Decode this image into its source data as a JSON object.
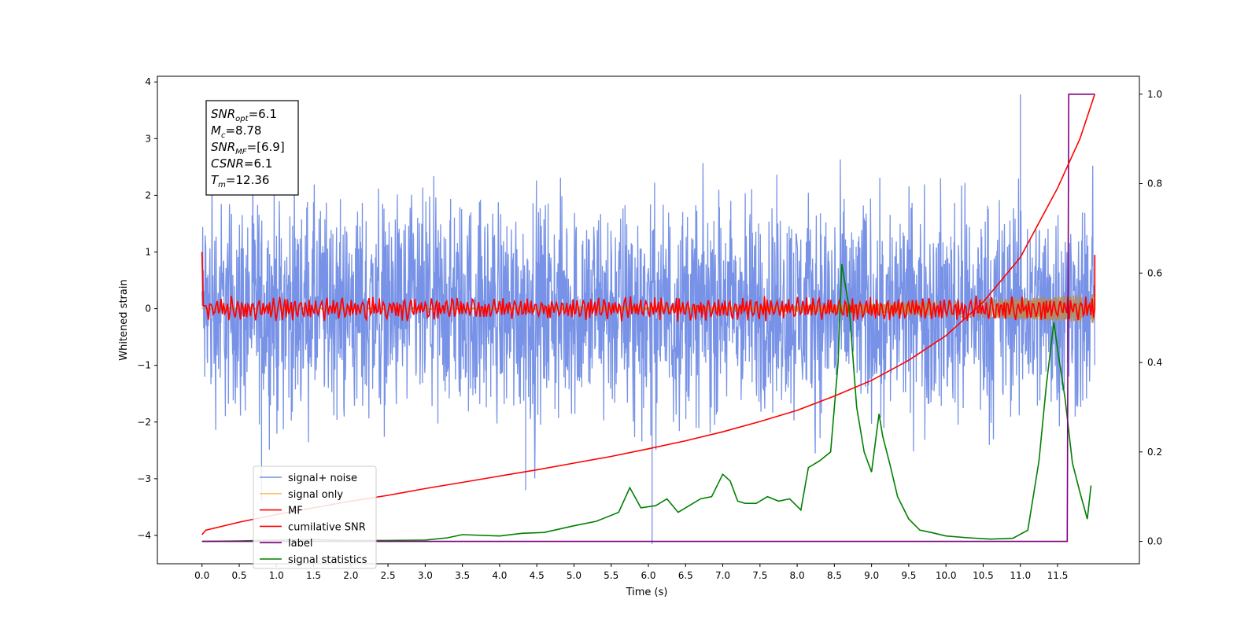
{
  "chart_data": {
    "type": "line",
    "xlabel": "Time (s)",
    "ylabel": "Whitened strain",
    "xlim": [
      -0.6,
      12.6
    ],
    "ylim": [
      -4.5,
      4.1
    ],
    "y2lim": [
      -0.05,
      1.04
    ],
    "xticks": [
      "0.0",
      "0.5",
      "1.0",
      "1.5",
      "2.0",
      "2.5",
      "3.0",
      "3.5",
      "4.0",
      "4.5",
      "5.0",
      "5.5",
      "6.0",
      "6.5",
      "7.0",
      "7.5",
      "8.0",
      "8.5",
      "9.0",
      "9.5",
      "10.0",
      "10.5",
      "11.0",
      "11.5"
    ],
    "yticks": [
      4,
      3,
      2,
      1,
      0,
      -1,
      -2,
      -3,
      -4
    ],
    "y2ticks": [
      "1.0",
      "0.8",
      "0.6",
      "0.4",
      "0.2",
      "0.0"
    ],
    "grid": false,
    "legend_position": "lower-left",
    "annotation": {
      "lines": [
        {
          "label": "SNR",
          "sub": "opt",
          "value": "=6.1"
        },
        {
          "label": "M",
          "sub": "c",
          "value": "=8.78"
        },
        {
          "label": "SNR",
          "sub": "MF",
          "value": "=[6.9]"
        },
        {
          "label": "CSNR",
          "sub": "",
          "value": "=6.1"
        },
        {
          "label": "T",
          "sub": "m",
          "value": "=12.36"
        }
      ]
    },
    "series": [
      {
        "name": "signal+ noise",
        "color": "#7792e6",
        "axis": "left",
        "kind": "noise",
        "x_range": [
          0.0,
          12.0
        ],
        "band": [
          -1.75,
          1.9
        ],
        "peaks": [
          [
            11.0,
            3.78
          ],
          [
            6.05,
            -4.15
          ],
          [
            4.35,
            -3.2
          ],
          [
            0.8,
            -3.4
          ]
        ]
      },
      {
        "name": "signal only",
        "color": "#f5c26b",
        "axis": "left",
        "kind": "chirp",
        "x_range": [
          0.0,
          12.0
        ],
        "amplitude_end": 0.25
      },
      {
        "name": "MF",
        "color": "#ff0000",
        "axis": "left",
        "kind": "oscillation",
        "x_range": [
          0.0,
          12.0
        ],
        "amplitude": 0.18,
        "start_value": 1.0,
        "end_value": 0.95
      },
      {
        "name": "cumilative SNR",
        "color": "#ff0000",
        "axis": "right",
        "x": [
          0.0,
          0.05,
          0.5,
          1.0,
          1.5,
          2.0,
          2.5,
          3.0,
          3.5,
          4.0,
          4.5,
          5.0,
          5.5,
          6.0,
          6.5,
          7.0,
          7.5,
          8.0,
          8.5,
          9.0,
          9.5,
          10.0,
          10.5,
          11.0,
          11.5,
          11.8,
          12.0
        ],
        "y": [
          0.015,
          0.025,
          0.043,
          0.06,
          0.075,
          0.09,
          0.103,
          0.118,
          0.132,
          0.146,
          0.16,
          0.175,
          0.19,
          0.207,
          0.225,
          0.245,
          0.268,
          0.293,
          0.325,
          0.36,
          0.405,
          0.46,
          0.535,
          0.635,
          0.79,
          0.9,
          1.0
        ]
      },
      {
        "name": "label",
        "color": "#800080",
        "axis": "right",
        "x": [
          0.0,
          11.63,
          11.65,
          12.0
        ],
        "y": [
          0.0,
          0.0,
          1.0,
          1.0
        ]
      },
      {
        "name": "signal statistics",
        "color": "#008000",
        "axis": "right",
        "x": [
          0.0,
          0.5,
          1.0,
          1.5,
          2.0,
          2.5,
          3.0,
          3.3,
          3.5,
          4.0,
          4.3,
          4.6,
          5.0,
          5.3,
          5.6,
          5.75,
          5.9,
          6.1,
          6.25,
          6.4,
          6.55,
          6.7,
          6.85,
          7.0,
          7.1,
          7.2,
          7.3,
          7.45,
          7.6,
          7.75,
          7.9,
          8.05,
          8.15,
          8.3,
          8.45,
          8.55,
          8.6,
          8.7,
          8.8,
          8.9,
          9.0,
          9.1,
          9.15,
          9.25,
          9.35,
          9.5,
          9.65,
          9.8,
          10.0,
          10.3,
          10.6,
          10.9,
          11.1,
          11.25,
          11.35,
          11.45,
          11.5,
          11.6,
          11.7,
          11.8,
          11.9,
          11.95
        ],
        "y": [
          0.0,
          0.001,
          0.003,
          0.004,
          0.002,
          0.002,
          0.003,
          0.008,
          0.015,
          0.012,
          0.018,
          0.02,
          0.035,
          0.045,
          0.065,
          0.12,
          0.075,
          0.08,
          0.095,
          0.065,
          0.08,
          0.095,
          0.1,
          0.15,
          0.135,
          0.09,
          0.085,
          0.085,
          0.1,
          0.09,
          0.095,
          0.07,
          0.165,
          0.18,
          0.2,
          0.4,
          0.62,
          0.52,
          0.3,
          0.2,
          0.155,
          0.285,
          0.235,
          0.17,
          0.1,
          0.05,
          0.025,
          0.02,
          0.012,
          0.008,
          0.005,
          0.007,
          0.025,
          0.18,
          0.35,
          0.49,
          0.43,
          0.32,
          0.175,
          0.11,
          0.05,
          0.125
        ]
      }
    ]
  }
}
